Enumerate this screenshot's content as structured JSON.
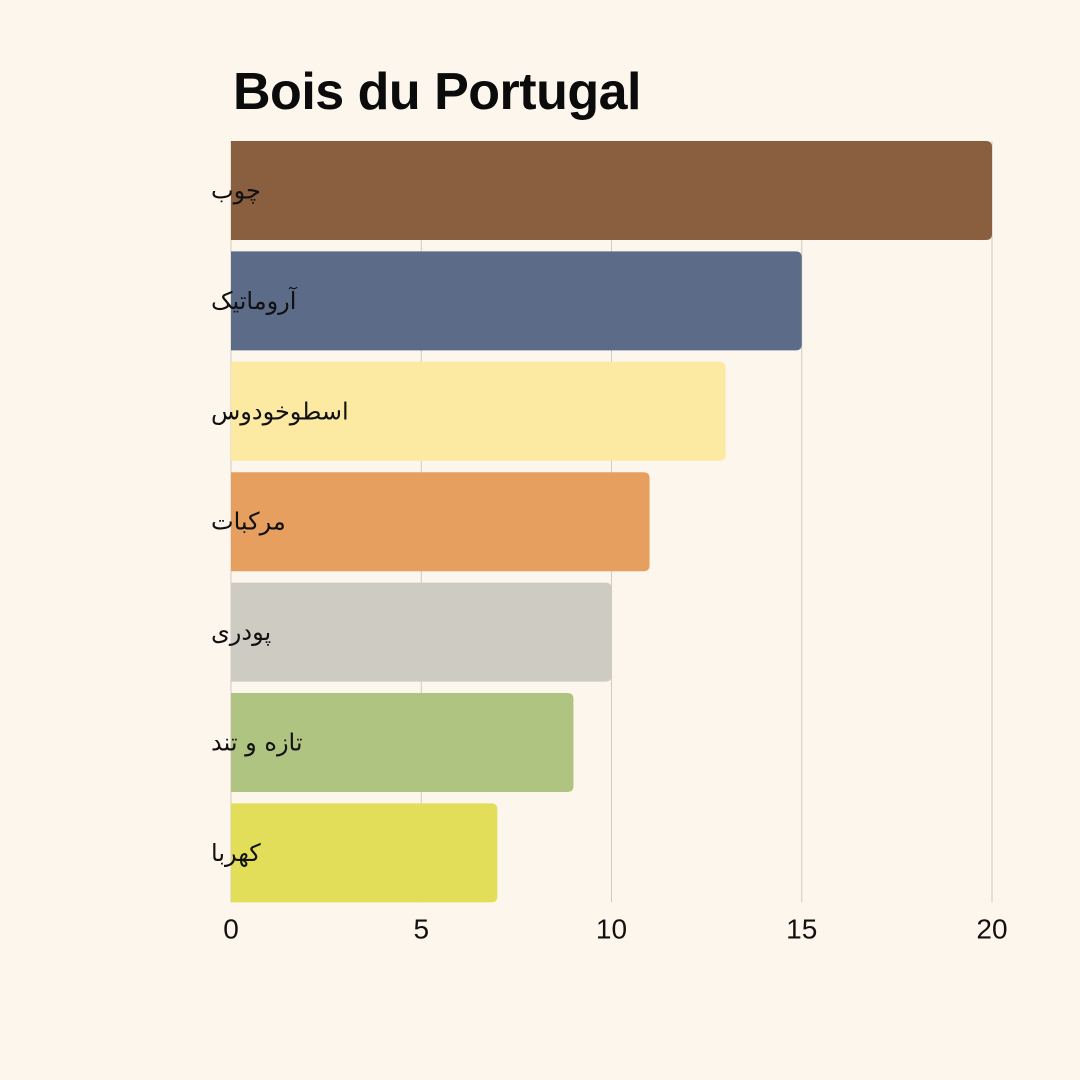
{
  "chart_data": {
    "type": "bar",
    "orientation": "horizontal",
    "title": "Bois du Portugal",
    "xlabel": "",
    "ylabel": "",
    "categories": [
      "چوب",
      "آروماتیک",
      "اسطوخودوس",
      "مرکبات",
      "پودری",
      "تازه و تند",
      "کهربا"
    ],
    "values": [
      20,
      15,
      13,
      11,
      10,
      9,
      7
    ],
    "colors": [
      "#8A5F40",
      "#5C6C88",
      "#FDEAA2",
      "#E69F5E",
      "#CECBC3",
      "#AFC480",
      "#E3DE5A"
    ],
    "xlim": [
      0,
      20
    ],
    "xticks": [
      0,
      5,
      10,
      15,
      20
    ],
    "grid": true,
    "legend": "none"
  }
}
